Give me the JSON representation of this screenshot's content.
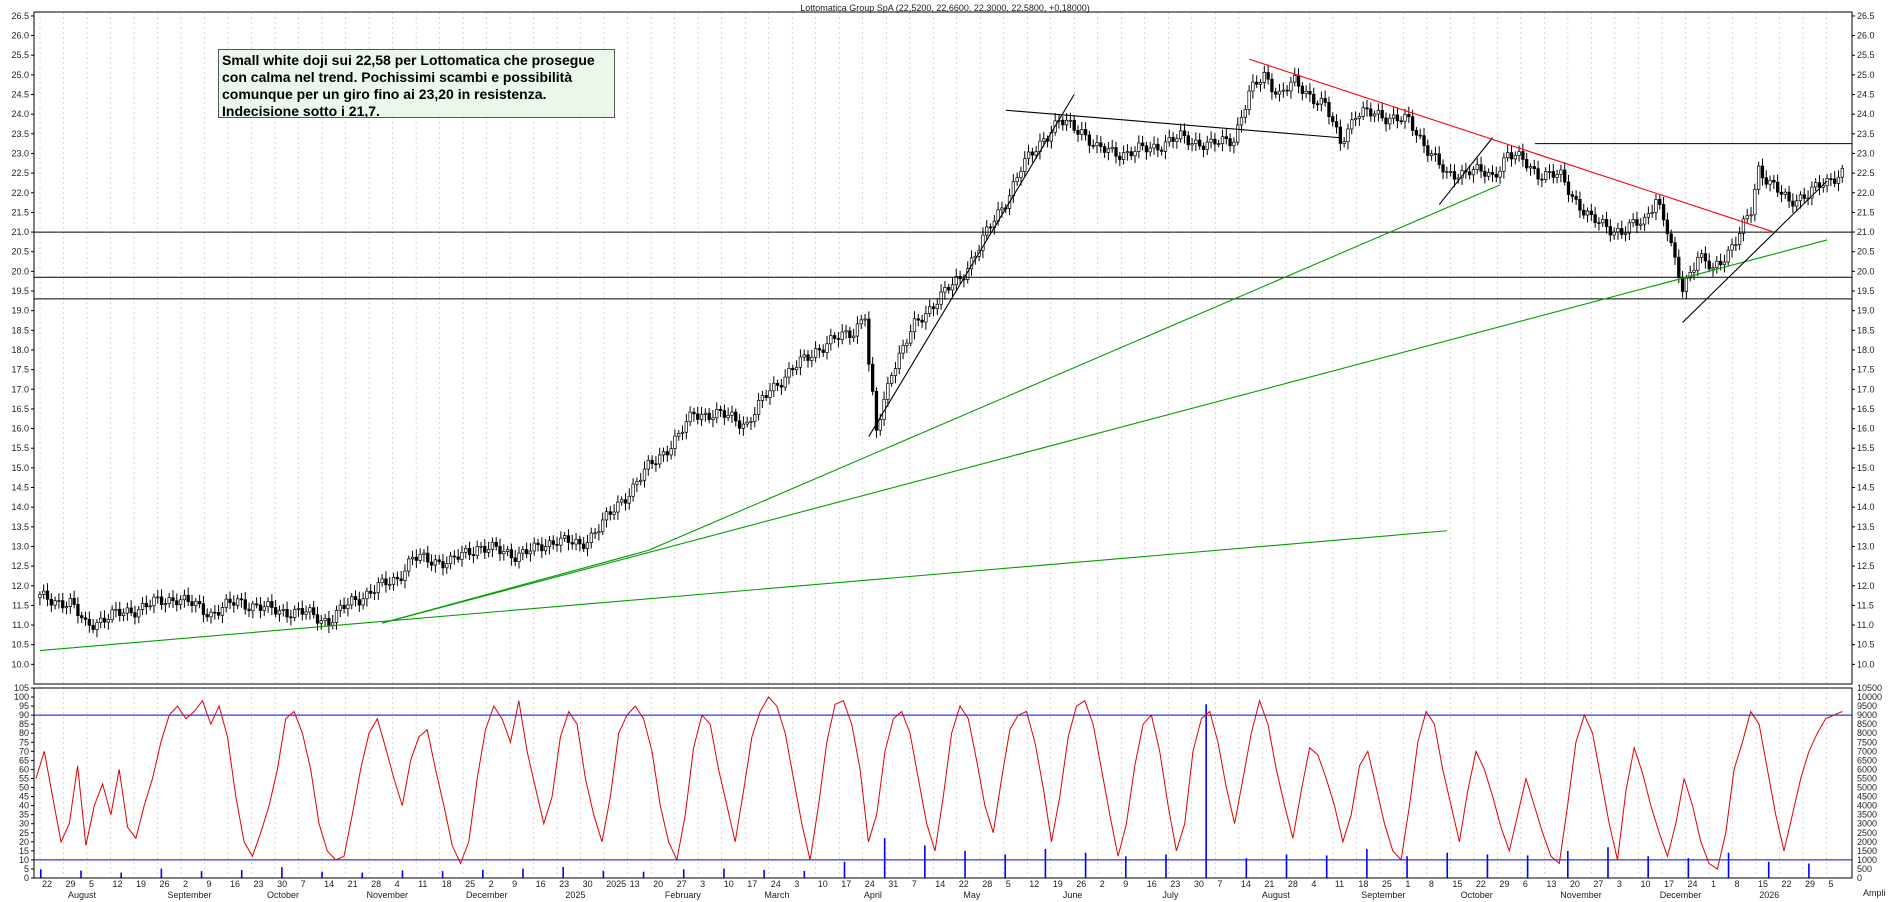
{
  "chart_data": [
    {
      "type": "candlestick",
      "title": "Lottomatica Group SpA (22,5200, 22,6600, 22,3000, 22,5800, +0,18000)",
      "ylim": [
        9.5,
        26.6
      ],
      "y_ticks": [
        "10.0",
        "10.5",
        "11.0",
        "11.5",
        "12.0",
        "12.5",
        "13.0",
        "13.5",
        "14.0",
        "14.5",
        "15.0",
        "15.5",
        "16.0",
        "16.5",
        "17.0",
        "17.5",
        "18.0",
        "18.5",
        "19.0",
        "19.5",
        "20.0",
        "20.5",
        "21.0",
        "21.5",
        "22.0",
        "22.5",
        "23.0",
        "23.5",
        "24.0",
        "24.5",
        "25.0",
        "25.5",
        "26.0",
        "26.5"
      ],
      "x_day_labels": [
        "22",
        "29",
        "5",
        "12",
        "19",
        "26",
        "2",
        "9",
        "16",
        "23",
        "30",
        "7",
        "14",
        "21",
        "28",
        "4",
        "11",
        "18",
        "25",
        "2",
        "9",
        "16",
        "23",
        "30",
        "2025",
        "13",
        "20",
        "27",
        "3",
        "10",
        "17",
        "24",
        "3",
        "10",
        "17",
        "24",
        "31",
        "7",
        "14",
        "22",
        "28",
        "5",
        "12",
        "19",
        "26",
        "2",
        "9",
        "16",
        "23",
        "30",
        "7",
        "14",
        "21",
        "28",
        "4",
        "11",
        "18",
        "25",
        "1",
        "8",
        "15",
        "22",
        "29",
        "6",
        "13",
        "20",
        "27",
        "3",
        "10",
        "17",
        "24",
        "1",
        "8",
        "15",
        "22",
        "29",
        "5"
      ],
      "x_month_labels": [
        "August",
        "September",
        "October",
        "November",
        "December",
        "2025",
        "February",
        "March",
        "April",
        "May",
        "June",
        "July",
        "August",
        "September",
        "October",
        "November",
        "December",
        "2026"
      ],
      "series": [
        {
          "name": "",
          "anchors": [
            [
              0,
              11.7
            ],
            [
              8,
              11.55
            ],
            [
              12,
              11.0
            ],
            [
              18,
              11.2
            ],
            [
              30,
              11.55
            ],
            [
              36,
              11.7
            ],
            [
              45,
              11.3
            ],
            [
              52,
              11.6
            ],
            [
              60,
              11.4
            ],
            [
              70,
              11.3
            ],
            [
              76,
              11.1
            ],
            [
              82,
              11.6
            ],
            [
              88,
              11.9
            ],
            [
              94,
              12.2
            ],
            [
              98,
              12.7
            ],
            [
              108,
              12.6
            ],
            [
              115,
              13.0
            ],
            [
              125,
              12.8
            ],
            [
              130,
              12.9
            ],
            [
              136,
              13.2
            ],
            [
              142,
              13.0
            ],
            [
              150,
              13.8
            ],
            [
              160,
              15.0
            ],
            [
              168,
              15.8
            ],
            [
              172,
              16.4
            ],
            [
              182,
              16.3
            ],
            [
              186,
              16.1
            ],
            [
              192,
              17.0
            ],
            [
              198,
              17.5
            ],
            [
              204,
              18.0
            ],
            [
              214,
              18.5
            ],
            [
              217,
              18.9
            ],
            [
              218,
              17.6
            ],
            [
              220,
              15.9
            ],
            [
              224,
              17.5
            ],
            [
              230,
              18.6
            ],
            [
              236,
              19.3
            ],
            [
              242,
              19.8
            ],
            [
              248,
              20.8
            ],
            [
              254,
              21.8
            ],
            [
              258,
              22.6
            ],
            [
              264,
              23.4
            ],
            [
              268,
              23.8
            ],
            [
              274,
              23.6
            ],
            [
              278,
              23.1
            ],
            [
              286,
              23.0
            ],
            [
              294,
              23.2
            ],
            [
              300,
              23.4
            ],
            [
              308,
              23.2
            ],
            [
              314,
              23.4
            ],
            [
              318,
              24.5
            ],
            [
              322,
              25.0
            ],
            [
              326,
              24.5
            ],
            [
              330,
              24.8
            ],
            [
              338,
              24.2
            ],
            [
              342,
              23.3
            ],
            [
              346,
              24.0
            ],
            [
              352,
              24.0
            ],
            [
              360,
              23.8
            ],
            [
              366,
              23.0
            ],
            [
              370,
              22.4
            ],
            [
              376,
              22.6
            ],
            [
              382,
              22.4
            ],
            [
              386,
              23.0
            ],
            [
              390,
              22.8
            ],
            [
              394,
              22.5
            ],
            [
              400,
              22.4
            ],
            [
              404,
              21.8
            ],
            [
              408,
              21.3
            ],
            [
              416,
              21.0
            ],
            [
              422,
              21.3
            ],
            [
              425,
              21.9
            ],
            [
              428,
              21.0
            ],
            [
              430,
              20.2
            ],
            [
              432,
              19.6
            ],
            [
              436,
              20.4
            ],
            [
              440,
              20.0
            ],
            [
              446,
              20.8
            ],
            [
              450,
              21.5
            ],
            [
              452,
              22.6
            ],
            [
              456,
              22.2
            ],
            [
              460,
              21.7
            ],
            [
              466,
              22.1
            ],
            [
              470,
              22.2
            ],
            [
              474,
              22.58
            ]
          ]
        }
      ]
    },
    {
      "type": "line+bar",
      "ylim": [
        0,
        105
      ],
      "y_ticks_left": [
        "0",
        "5",
        "10",
        "15",
        "20",
        "25",
        "30",
        "35",
        "40",
        "45",
        "50",
        "55",
        "60",
        "65",
        "70",
        "75",
        "80",
        "85",
        "90",
        "95",
        "100",
        "105"
      ],
      "y_ticks_right": [
        "0",
        "500",
        "1000",
        "1500",
        "2000",
        "2500",
        "3000",
        "3500",
        "4000",
        "4500",
        "5000",
        "5500",
        "6000",
        "6500",
        "7000",
        "7500",
        "8000",
        "8500",
        "9000",
        "9500",
        "10000",
        "10500"
      ],
      "reference_levels": [
        10,
        90
      ],
      "series": [
        {
          "name": "",
          "values": [
            55,
            70,
            45,
            20,
            30,
            62,
            18,
            40,
            52,
            35,
            60,
            28,
            22,
            40,
            55,
            75,
            90,
            95,
            88,
            92,
            98,
            85,
            95,
            78,
            45,
            20,
            12,
            25,
            40,
            60,
            88,
            92,
            80,
            60,
            30,
            15,
            10,
            12,
            35,
            60,
            80,
            88,
            72,
            55,
            40,
            65,
            78,
            82,
            60,
            40,
            18,
            8,
            20,
            55,
            82,
            95,
            88,
            75,
            98,
            70,
            50,
            30,
            45,
            78,
            92,
            85,
            55,
            35,
            20,
            45,
            80,
            90,
            95,
            88,
            70,
            40,
            20,
            10,
            35,
            72,
            90,
            85,
            60,
            40,
            20,
            48,
            78,
            92,
            100,
            95,
            80,
            55,
            30,
            10,
            40,
            75,
            96,
            98,
            85,
            60,
            20,
            35,
            70,
            88,
            92,
            80,
            55,
            30,
            15,
            45,
            80,
            95,
            88,
            65,
            40,
            25,
            55,
            82,
            90,
            92,
            75,
            50,
            20,
            45,
            78,
            95,
            98,
            85,
            60,
            35,
            12,
            30,
            62,
            85,
            90,
            70,
            40,
            15,
            30,
            70,
            88,
            92,
            75,
            50,
            30,
            55,
            80,
            98,
            85,
            60,
            40,
            22,
            48,
            72,
            68,
            55,
            40,
            20,
            35,
            62,
            70,
            50,
            30,
            15,
            10,
            40,
            75,
            92,
            85,
            60,
            40,
            20,
            48,
            70,
            60,
            45,
            28,
            15,
            35,
            55,
            40,
            25,
            12,
            8,
            40,
            75,
            90,
            80,
            55,
            30,
            10,
            48,
            72,
            58,
            40,
            25,
            12,
            30,
            55,
            40,
            20,
            8,
            5,
            25,
            60,
            75,
            92,
            85,
            60,
            35,
            15,
            35,
            55,
            70,
            80,
            88,
            90,
            92
          ]
        },
        {
          "name": "",
          "values": [
            480,
            410,
            300,
            520,
            380,
            440,
            600,
            350,
            300,
            420,
            380,
            450,
            520,
            610,
            400,
            350,
            480,
            520,
            440,
            390,
            900,
            2200,
            1800,
            1500,
            1300,
            1600,
            1400,
            1200,
            1300,
            9600,
            1100,
            1300,
            1250,
            1600,
            1200,
            1400,
            1300,
            1250,
            1500,
            1700,
            1200,
            1100,
            1400,
            900,
            800
          ]
        }
      ]
    }
  ],
  "annotation": {
    "text": "Small white doji sui 22,58 per Lottomatica che prosegue\ncon calma nel trend. Pochissimi scambi e possibilità\ncomunque per un giro fino ai 23,20 in resistenza.\nIndecisione sotto i 21,7."
  },
  "corner_label": "Ampli",
  "colors": {
    "candles": "#000000",
    "green_trend": "#00a000",
    "red_trend": "#ff0000",
    "oscillator": "#e00000",
    "blue_levels": "#0000ff",
    "grid": "#bbbbbb"
  }
}
